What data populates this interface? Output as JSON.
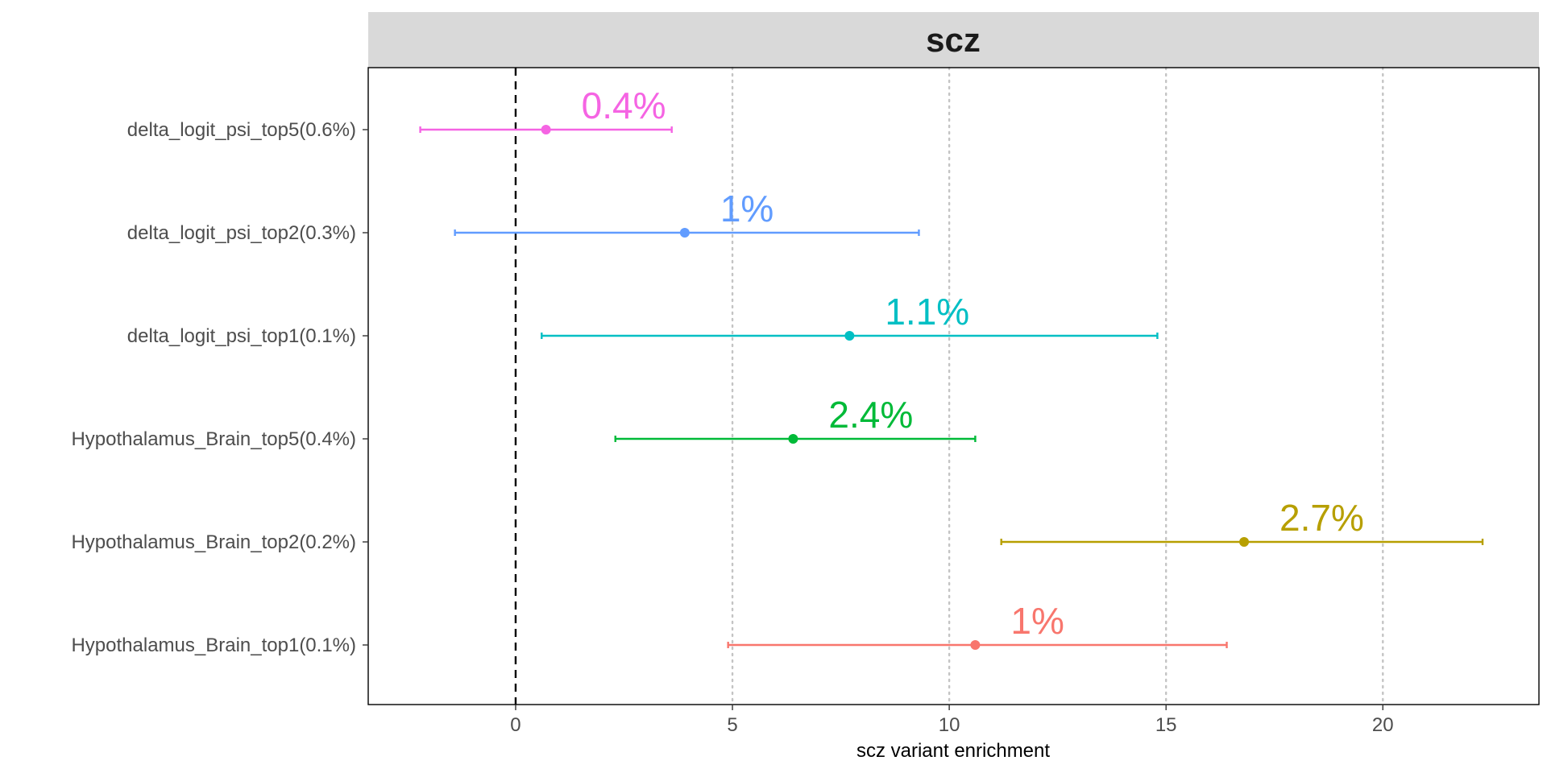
{
  "chart_data": {
    "type": "forest",
    "facet_title": "scz",
    "xlabel": "scz variant enrichment",
    "ylabel": "",
    "xlim": [
      -3.4,
      23.6
    ],
    "xticks": [
      0,
      5,
      10,
      15,
      20
    ],
    "reference_line_x": 0,
    "grid": "vertical dotted at major x ticks",
    "legend": "none",
    "rows": [
      {
        "category": "delta_logit_psi_top5(0.6%)",
        "estimate": 0.7,
        "ci_low": -2.2,
        "ci_high": 3.6,
        "label": "0.4%",
        "color": "#F564E3"
      },
      {
        "category": "delta_logit_psi_top2(0.3%)",
        "estimate": 3.9,
        "ci_low": -1.4,
        "ci_high": 9.3,
        "label": "1%",
        "color": "#619CFF"
      },
      {
        "category": "delta_logit_psi_top1(0.1%)",
        "estimate": 7.7,
        "ci_low": 0.6,
        "ci_high": 14.8,
        "label": "1.1%",
        "color": "#00BFC4"
      },
      {
        "category": "Hypothalamus_Brain_top5(0.4%)",
        "estimate": 6.4,
        "ci_low": 2.3,
        "ci_high": 10.6,
        "label": "2.4%",
        "color": "#00BA38"
      },
      {
        "category": "Hypothalamus_Brain_top2(0.2%)",
        "estimate": 16.8,
        "ci_low": 11.2,
        "ci_high": 22.3,
        "label": "2.7%",
        "color": "#B79F00"
      },
      {
        "category": "Hypothalamus_Brain_top1(0.1%)",
        "estimate": 10.6,
        "ci_low": 4.9,
        "ci_high": 16.4,
        "label": "1%",
        "color": "#F8766D"
      }
    ]
  }
}
